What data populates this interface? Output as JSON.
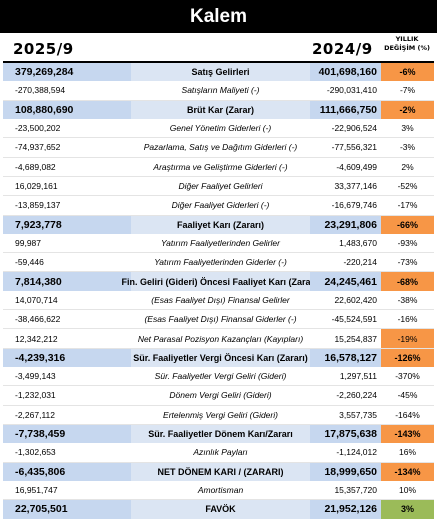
{
  "title": "Kalem",
  "header": {
    "year_left": "2025/9",
    "year_right": "2024/9",
    "change_line1": "YILLIK",
    "change_line2": "DEĞİŞİM (%)"
  },
  "colors": {
    "major_fill": "#c6d7ef",
    "major_label_fill": "#dbe5f3",
    "negative_highlight": "#f79646",
    "positive_highlight": "#9bbb59"
  },
  "rows": [
    {
      "left": "379,269,284",
      "label": "Satış Gelirleri",
      "right": "401,698,160",
      "change": "-6%",
      "major": true,
      "hl": "orange"
    },
    {
      "left": "-270,388,594",
      "label": "Satışların Maliyeti (-)",
      "right": "-290,031,410",
      "change": "-7%",
      "major": false,
      "hl": ""
    },
    {
      "left": "108,880,690",
      "label": "Brüt Kar (Zarar)",
      "right": "111,666,750",
      "change": "-2%",
      "major": true,
      "hl": "orange"
    },
    {
      "left": "-23,500,202",
      "label": "Genel Yönetim Giderleri (-)",
      "right": "-22,906,524",
      "change": "3%",
      "major": false,
      "hl": ""
    },
    {
      "left": "-74,937,652",
      "label": "Pazarlama, Satış ve Dağıtım Giderleri (-)",
      "right": "-77,556,321",
      "change": "-3%",
      "major": false,
      "hl": ""
    },
    {
      "left": "-4,689,082",
      "label": "Araştırma ve Geliştirme Giderleri (-)",
      "right": "-4,609,499",
      "change": "2%",
      "major": false,
      "hl": ""
    },
    {
      "left": "16,029,161",
      "label": "Diğer Faaliyet Gelirleri",
      "right": "33,377,146",
      "change": "-52%",
      "major": false,
      "hl": ""
    },
    {
      "left": "-13,859,137",
      "label": "Diğer Faaliyet Giderleri (-)",
      "right": "-16,679,746",
      "change": "-17%",
      "major": false,
      "hl": ""
    },
    {
      "left": "7,923,778",
      "label": "Faaliyet Karı (Zararı)",
      "right": "23,291,806",
      "change": "-66%",
      "major": true,
      "hl": "orange"
    },
    {
      "left": "99,987",
      "label": "Yatırım Faaliyetlerinden Gelirler",
      "right": "1,483,670",
      "change": "-93%",
      "major": false,
      "hl": ""
    },
    {
      "left": "-59,446",
      "label": "Yatırım Faaliyetlerinden Giderler (-)",
      "right": "-220,214",
      "change": "-73%",
      "major": false,
      "hl": ""
    },
    {
      "left": "7,814,380",
      "label": "Fin. Geliri (Gideri) Öncesi Faaliyet Karı (Zararı)",
      "right": "24,245,461",
      "change": "-68%",
      "major": true,
      "hl": "orange"
    },
    {
      "left": "14,070,714",
      "label": "(Esas Faaliyet Dışı) Finansal Gelirler",
      "right": "22,602,420",
      "change": "-38%",
      "major": false,
      "hl": ""
    },
    {
      "left": "-38,466,622",
      "label": "(Esas Faaliyet Dışı) Finansal Giderler (-)",
      "right": "-45,524,591",
      "change": "-16%",
      "major": false,
      "hl": ""
    },
    {
      "left": "12,342,212",
      "label": "Net Parasal Pozisyon Kazançları (Kayıpları)",
      "right": "15,254,837",
      "change": "-19%",
      "major": false,
      "hl": "orange"
    },
    {
      "left": "-4,239,316",
      "label": "Sür. Faaliyetler Vergi Öncesi Karı (Zararı)",
      "right": "16,578,127",
      "change": "-126%",
      "major": true,
      "hl": "orange"
    },
    {
      "left": "-3,499,143",
      "label": "Sür. Faaliyetler Vergi Geliri (Gideri)",
      "right": "1,297,511",
      "change": "-370%",
      "major": false,
      "hl": ""
    },
    {
      "left": "-1,232,031",
      "label": "Dönem Vergi Geliri (Gideri)",
      "right": "-2,260,224",
      "change": "-45%",
      "major": false,
      "hl": ""
    },
    {
      "left": "-2,267,112",
      "label": "Ertelenmiş Vergi Geliri (Gideri)",
      "right": "3,557,735",
      "change": "-164%",
      "major": false,
      "hl": ""
    },
    {
      "left": "-7,738,459",
      "label": "Sür. Faaliyetler Dönem Karı/Zararı",
      "right": "17,875,638",
      "change": "-143%",
      "major": true,
      "hl": "orange"
    },
    {
      "left": "-1,302,653",
      "label": "Azınlık Payları",
      "right": "-1,124,012",
      "change": "16%",
      "major": false,
      "hl": ""
    },
    {
      "left": "-6,435,806",
      "label": "NET DÖNEM KARI / (ZARARI)",
      "right": "18,999,650",
      "change": "-134%",
      "major": true,
      "hl": "orange"
    },
    {
      "left": "16,951,747",
      "label": "Amortisman",
      "right": "15,357,720",
      "change": "10%",
      "major": false,
      "hl": ""
    },
    {
      "left": "22,705,501",
      "label": "FAVÖK",
      "right": "21,952,126",
      "change": "3%",
      "major": true,
      "hl": "green"
    }
  ]
}
